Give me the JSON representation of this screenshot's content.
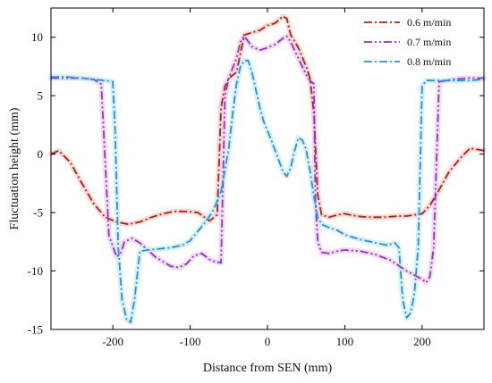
{
  "chart_data": {
    "type": "line",
    "title": "",
    "xlabel": "Distance from SEN (mm)",
    "ylabel": "Fluctuation height (mm)",
    "xlim": [
      -280,
      280
    ],
    "ylim": [
      -15,
      12.5
    ],
    "x_ticks": [
      -200,
      -100,
      0,
      100,
      200
    ],
    "x_tick_labels": [
      "-200",
      "-100",
      "0",
      "100",
      "200"
    ],
    "y_ticks": [
      -15,
      -10,
      -5,
      0,
      5,
      10
    ],
    "y_tick_labels": [
      "-15",
      "-10",
      "-5",
      "0",
      "5",
      "10"
    ],
    "grid": false,
    "legend_position": "top-right",
    "series": [
      {
        "name": "0.6 m/min",
        "color": "#a8260f",
        "dash": "dash-dot",
        "band_color": "#f6cfcf",
        "x": [
          -280,
          -270,
          -255,
          -240,
          -225,
          -210,
          -195,
          -180,
          -165,
          -150,
          -135,
          -120,
          -105,
          -90,
          -75,
          -65,
          -60,
          -55,
          -50,
          -40,
          -30,
          -20,
          -10,
          0,
          10,
          20,
          25,
          30,
          40,
          50,
          55,
          60,
          65,
          70,
          80,
          90,
          100,
          115,
          130,
          150,
          170,
          180,
          190,
          200,
          210,
          220,
          235,
          250,
          262,
          280
        ],
        "y": [
          0.0,
          0.3,
          -0.7,
          -2.5,
          -4.2,
          -5.4,
          -5.8,
          -6.0,
          -5.8,
          -5.4,
          -5.1,
          -4.9,
          -4.9,
          -5.0,
          -5.7,
          -5.2,
          4.0,
          5.8,
          6.5,
          7.0,
          10.2,
          10.4,
          10.6,
          11.0,
          11.2,
          11.8,
          11.6,
          10.2,
          9.1,
          7.5,
          6.5,
          3.5,
          -3.5,
          -5.2,
          -5.4,
          -5.2,
          -5.1,
          -5.3,
          -5.4,
          -5.4,
          -5.3,
          -5.3,
          -5.2,
          -5.1,
          -4.4,
          -3.3,
          -1.5,
          -0.3,
          0.5,
          0.3
        ]
      },
      {
        "name": "0.7 m/min",
        "color": "#9b2fc2",
        "dash": "dash-dot-dot",
        "band_color": "#e8d2f2",
        "x": [
          -280,
          -260,
          -240,
          -225,
          -220,
          -215,
          -205,
          -195,
          -190,
          -185,
          -175,
          -165,
          -155,
          -145,
          -135,
          -125,
          -115,
          -105,
          -95,
          -85,
          -75,
          -68,
          -60,
          -55,
          -50,
          -40,
          -35,
          -30,
          -20,
          -10,
          0,
          10,
          20,
          25,
          30,
          40,
          50,
          55,
          60,
          62,
          65,
          70,
          80,
          90,
          100,
          120,
          140,
          160,
          180,
          200,
          205,
          210,
          215,
          222,
          240,
          260,
          280
        ],
        "y": [
          6.5,
          6.5,
          6.5,
          6.4,
          6.2,
          6.0,
          -7.0,
          -8.8,
          -8.5,
          -7.5,
          -7.2,
          -7.6,
          -8.2,
          -8.8,
          -9.2,
          -9.6,
          -9.7,
          -9.4,
          -8.7,
          -8.5,
          -9.0,
          -9.2,
          -9.3,
          5.0,
          6.5,
          8.2,
          9.6,
          10.1,
          9.2,
          8.9,
          9.1,
          9.4,
          9.9,
          10.1,
          9.6,
          8.2,
          6.8,
          6.3,
          6.0,
          -4.0,
          -7.5,
          -8.4,
          -8.5,
          -8.3,
          -8.2,
          -8.3,
          -8.6,
          -9.1,
          -10.0,
          -10.7,
          -11.0,
          -10.5,
          -8.0,
          6.2,
          6.4,
          6.5,
          6.5
        ]
      },
      {
        "name": "0.8 m/min",
        "color": "#2f8fd6",
        "dash": "dash-dot",
        "band_color": "#c9eef8",
        "x": [
          -280,
          -260,
          -240,
          -225,
          -210,
          -200,
          -197,
          -193,
          -188,
          -182,
          -177,
          -172,
          -165,
          -155,
          -140,
          -125,
          -110,
          -100,
          -90,
          -80,
          -70,
          -60,
          -50,
          -45,
          -40,
          -35,
          -30,
          -25,
          -20,
          -15,
          -10,
          -5,
          0,
          5,
          10,
          15,
          20,
          25,
          30,
          35,
          40,
          45,
          50,
          55,
          60,
          65,
          70,
          80,
          90,
          100,
          120,
          140,
          155,
          165,
          170,
          175,
          180,
          185,
          190,
          195,
          200,
          205,
          220,
          240,
          260,
          280
        ],
        "y": [
          6.6,
          6.6,
          6.5,
          6.4,
          6.3,
          6.2,
          2.0,
          -8.0,
          -12.5,
          -14.2,
          -14.4,
          -12.5,
          -8.3,
          -8.2,
          -8.1,
          -8.0,
          -7.8,
          -7.4,
          -6.6,
          -5.8,
          -4.8,
          -3.2,
          0.5,
          3.5,
          6.0,
          7.5,
          8.0,
          8.0,
          7.0,
          5.5,
          4.0,
          2.8,
          2.0,
          1.2,
          0.3,
          -0.6,
          -1.5,
          -1.9,
          -1.2,
          0.3,
          1.4,
          1.2,
          0.4,
          -1.4,
          -3.6,
          -5.4,
          -6.0,
          -6.3,
          -6.5,
          -6.9,
          -7.3,
          -7.6,
          -7.8,
          -7.6,
          -8.0,
          -12.5,
          -14.0,
          -13.6,
          -12.0,
          -8.0,
          5.8,
          6.3,
          6.3,
          6.3,
          6.3,
          6.4
        ]
      }
    ]
  }
}
